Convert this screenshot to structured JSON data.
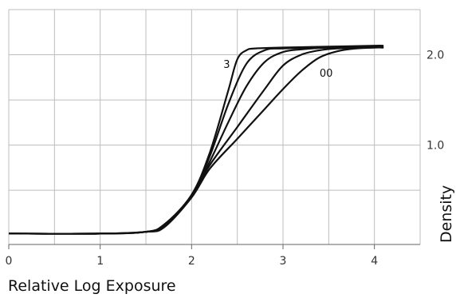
{
  "chart_data": {
    "type": "line",
    "xlabel": "Relative Log Exposure",
    "ylabel": "Density",
    "xlim": [
      0,
      4.5
    ],
    "ylim": [
      -0.1,
      2.5
    ],
    "x_ticks": [
      "0",
      "1",
      "2",
      "3",
      "4"
    ],
    "y_ticks": [
      "1.0",
      "2.0"
    ],
    "grid": true,
    "curve_labels": [
      "3",
      "00"
    ],
    "series": [
      {
        "x": [
          0,
          1,
          1.5,
          1.7,
          2.0,
          2.2,
          2.4,
          2.5,
          2.6,
          2.7,
          3.0,
          3.5,
          4.0,
          4.1
        ],
        "y": [
          0.02,
          0.02,
          0.04,
          0.12,
          0.45,
          0.92,
          1.6,
          1.95,
          2.05,
          2.07,
          2.08,
          2.09,
          2.1,
          2.1
        ]
      },
      {
        "x": [
          0,
          1,
          1.5,
          1.7,
          2.0,
          2.2,
          2.4,
          2.6,
          2.8,
          3.0,
          3.5,
          4.0,
          4.1
        ],
        "y": [
          0.02,
          0.02,
          0.04,
          0.12,
          0.44,
          0.88,
          1.45,
          1.9,
          2.05,
          2.07,
          2.08,
          2.09,
          2.09
        ]
      },
      {
        "x": [
          0,
          1,
          1.5,
          1.7,
          2.0,
          2.2,
          2.4,
          2.6,
          2.8,
          3.0,
          3.2,
          3.5,
          4.0,
          4.1
        ],
        "y": [
          0.02,
          0.02,
          0.04,
          0.11,
          0.44,
          0.82,
          1.25,
          1.65,
          1.92,
          2.03,
          2.06,
          2.08,
          2.09,
          2.09
        ]
      },
      {
        "x": [
          0,
          1,
          1.5,
          1.7,
          2.0,
          2.2,
          2.5,
          2.8,
          3.0,
          3.2,
          3.4,
          3.6,
          4.0,
          4.1
        ],
        "y": [
          0.02,
          0.02,
          0.04,
          0.1,
          0.43,
          0.78,
          1.2,
          1.62,
          1.88,
          2.0,
          2.05,
          2.07,
          2.08,
          2.08
        ]
      },
      {
        "x": [
          0,
          1,
          1.5,
          1.7,
          2.0,
          2.2,
          2.5,
          2.8,
          3.0,
          3.2,
          3.4,
          3.6,
          3.8,
          4.0,
          4.1
        ],
        "y": [
          0.02,
          0.02,
          0.04,
          0.09,
          0.42,
          0.74,
          1.07,
          1.4,
          1.62,
          1.82,
          1.97,
          2.04,
          2.07,
          2.08,
          2.08
        ]
      }
    ]
  }
}
